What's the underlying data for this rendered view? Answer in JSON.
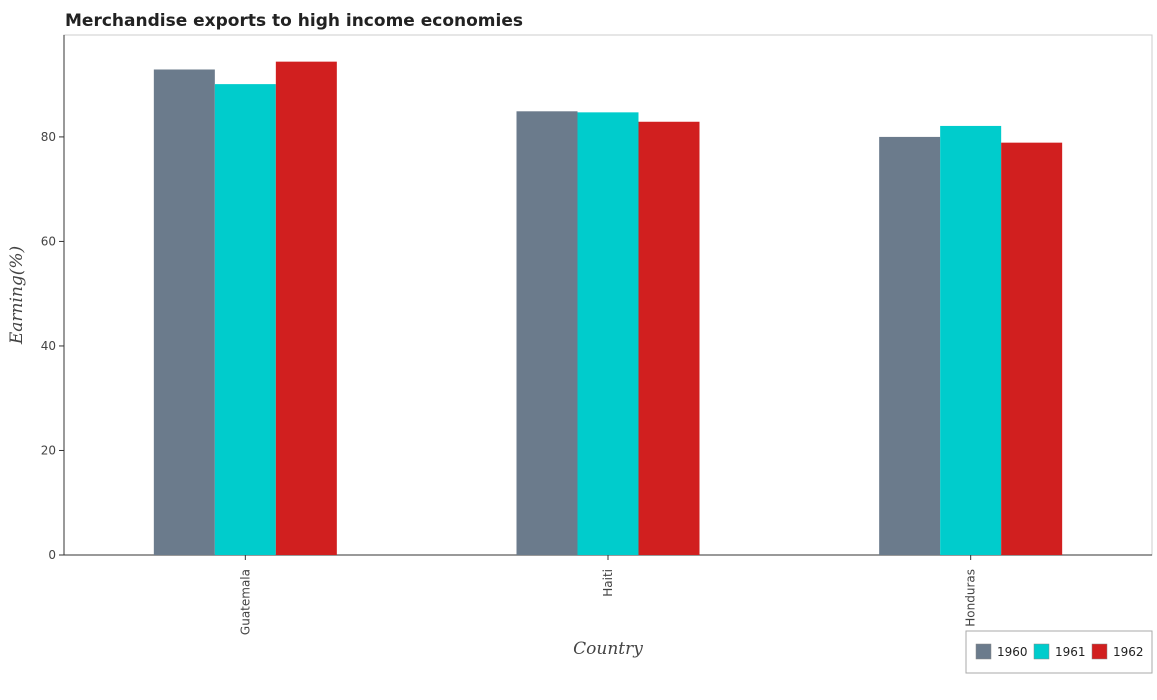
{
  "chart_data": {
    "type": "bar",
    "title": "Merchandise exports to high income economies",
    "xlabel": "Country",
    "ylabel": "Earning(%)",
    "categories": [
      "Guatemala",
      "Haiti",
      "Honduras"
    ],
    "series": [
      {
        "name": "1960",
        "color": "#6b7b8c",
        "values": [
          92.9,
          84.9,
          80.0
        ]
      },
      {
        "name": "1961",
        "color": "#00cccc",
        "values": [
          90.1,
          84.7,
          82.1
        ]
      },
      {
        "name": "1962",
        "color": "#d11f1f",
        "values": [
          94.4,
          82.9,
          78.9
        ]
      }
    ],
    "yticks": [
      0,
      20,
      40,
      60,
      80
    ],
    "ylim": [
      0,
      99.5
    ],
    "grid": false,
    "legend_position": "bottom-right"
  }
}
